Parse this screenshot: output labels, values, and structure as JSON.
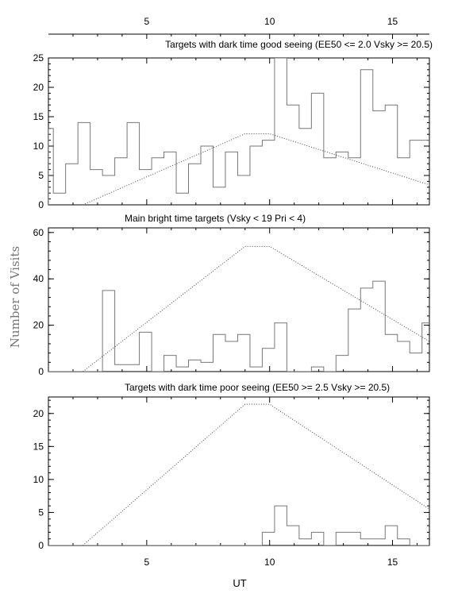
{
  "figure": {
    "ylabel": "Number of Visits",
    "xlabel": "UT",
    "top_axis_ticks": [
      "5",
      "10",
      "15"
    ],
    "line_color": "#777777",
    "axis_color": "#000000"
  },
  "chart_data": [
    {
      "type": "line",
      "title": "Targets with dark time good seeing (EE50 <= 2.0 Vsky >= 20.5)",
      "xlabel": "UT",
      "ylabel": "Number of Visits",
      "xlim": [
        1,
        16.5
      ],
      "ylim": [
        0,
        25
      ],
      "x_ticks": [
        5,
        10,
        15
      ],
      "y_ticks": [
        0,
        5,
        10,
        15,
        20,
        25
      ],
      "x_tick_labels_shown": false,
      "bin_width": 0.5,
      "histogram": {
        "bin_starts": [
          1,
          1.2,
          1.7,
          2.2,
          2.7,
          3.2,
          3.7,
          4.2,
          4.7,
          5.2,
          5.7,
          6.2,
          6.7,
          7.2,
          7.7,
          8.2,
          8.7,
          9.2,
          9.7,
          10.2,
          10.7,
          11.2,
          11.7,
          12.2,
          12.7,
          13.2,
          13.7,
          14.2,
          14.7,
          15.2,
          15.7,
          16.2
        ],
        "bin_ends": [
          1.2,
          1.7,
          2.2,
          2.7,
          3.2,
          3.7,
          4.2,
          4.7,
          5.2,
          5.7,
          6.2,
          6.7,
          7.2,
          7.7,
          8.2,
          8.7,
          9.2,
          9.7,
          10.2,
          10.7,
          11.2,
          11.7,
          12.2,
          12.7,
          13.2,
          13.7,
          14.2,
          14.7,
          15.2,
          15.7,
          16.2,
          16.5
        ],
        "counts": [
          13,
          2,
          7,
          14,
          6,
          5,
          8,
          14,
          6,
          8,
          9,
          2,
          7,
          10,
          3,
          9,
          5,
          10,
          11,
          25,
          17,
          13,
          19,
          8,
          9,
          8,
          23,
          16,
          17,
          8,
          11,
          11
        ]
      },
      "envelope": {
        "x": [
          2.4,
          9.0,
          10.0,
          16.5
        ],
        "y": [
          0,
          12.1,
          12.1,
          3.4
        ]
      }
    },
    {
      "type": "line",
      "title": "Main bright time targets (Vsky < 19 Pri < 4)",
      "xlabel": "UT",
      "ylabel": "Number of Visits",
      "xlim": [
        1,
        16.5
      ],
      "ylim": [
        0,
        62
      ],
      "x_ticks": [
        5,
        10,
        15
      ],
      "y_ticks": [
        0,
        20,
        40,
        60
      ],
      "x_tick_labels_shown": false,
      "bin_width": 0.5,
      "histogram": {
        "bin_starts": [
          1,
          1.2,
          1.7,
          2.2,
          2.7,
          3.2,
          3.7,
          4.2,
          4.7,
          5.2,
          5.7,
          6.2,
          6.7,
          7.2,
          7.7,
          8.2,
          8.7,
          9.2,
          9.7,
          10.2,
          10.7,
          11.2,
          11.7,
          12.2,
          12.7,
          13.2,
          13.7,
          14.2,
          14.7,
          15.2,
          15.7,
          16.2
        ],
        "bin_ends": [
          1.2,
          1.7,
          2.2,
          2.7,
          3.2,
          3.7,
          4.2,
          4.7,
          5.2,
          5.7,
          6.2,
          6.7,
          7.2,
          7.7,
          8.2,
          8.7,
          9.2,
          9.7,
          10.2,
          10.7,
          11.2,
          11.7,
          12.2,
          12.7,
          13.2,
          13.7,
          14.2,
          14.7,
          15.2,
          15.7,
          16.2,
          16.5
        ],
        "counts": [
          0,
          0,
          0,
          0,
          0,
          35,
          3,
          3,
          17,
          0,
          7,
          2,
          5,
          4,
          16,
          13,
          16,
          2,
          10,
          21,
          0,
          0,
          2,
          0,
          7,
          27,
          36,
          39,
          16,
          13,
          8,
          21
        ]
      },
      "envelope": {
        "x": [
          2.4,
          9.0,
          10.0,
          16.5
        ],
        "y": [
          0,
          54,
          54,
          13
        ]
      }
    },
    {
      "type": "line",
      "title": "Targets with dark time poor seeing (EE50 >= 2.5 Vsky >= 20.5)",
      "xlabel": "UT",
      "ylabel": "Number of Visits",
      "xlim": [
        1,
        16.5
      ],
      "ylim": [
        0,
        22.5
      ],
      "x_ticks": [
        5,
        10,
        15
      ],
      "y_ticks": [
        0,
        5,
        10,
        15,
        20
      ],
      "x_tick_labels_shown": true,
      "bin_width": 0.5,
      "histogram": {
        "bin_starts": [
          1,
          1.2,
          1.7,
          2.2,
          2.7,
          3.2,
          3.7,
          4.2,
          4.7,
          5.2,
          5.7,
          6.2,
          6.7,
          7.2,
          7.7,
          8.2,
          8.7,
          9.2,
          9.7,
          10.2,
          10.7,
          11.2,
          11.7,
          12.2,
          12.7,
          13.2,
          13.7,
          14.2,
          14.7,
          15.2,
          15.7,
          16.2
        ],
        "bin_ends": [
          1.2,
          1.7,
          2.2,
          2.7,
          3.2,
          3.7,
          4.2,
          4.7,
          5.2,
          5.7,
          6.2,
          6.7,
          7.2,
          7.7,
          8.2,
          8.7,
          9.2,
          9.7,
          10.2,
          10.7,
          11.2,
          11.7,
          12.2,
          12.7,
          13.2,
          13.7,
          14.2,
          14.7,
          15.2,
          15.7,
          16.2,
          16.5
        ],
        "counts": [
          0,
          0,
          0,
          0,
          0,
          0,
          0,
          0,
          0,
          0,
          0,
          0,
          0,
          0,
          0,
          0,
          0,
          0,
          2,
          6,
          3,
          1,
          2,
          0,
          2,
          2,
          1,
          1,
          3,
          1,
          0,
          0
        ]
      },
      "envelope": {
        "x": [
          2.4,
          9.0,
          10.0,
          16.5
        ],
        "y": [
          0,
          21.4,
          21.4,
          5.5
        ]
      }
    }
  ]
}
